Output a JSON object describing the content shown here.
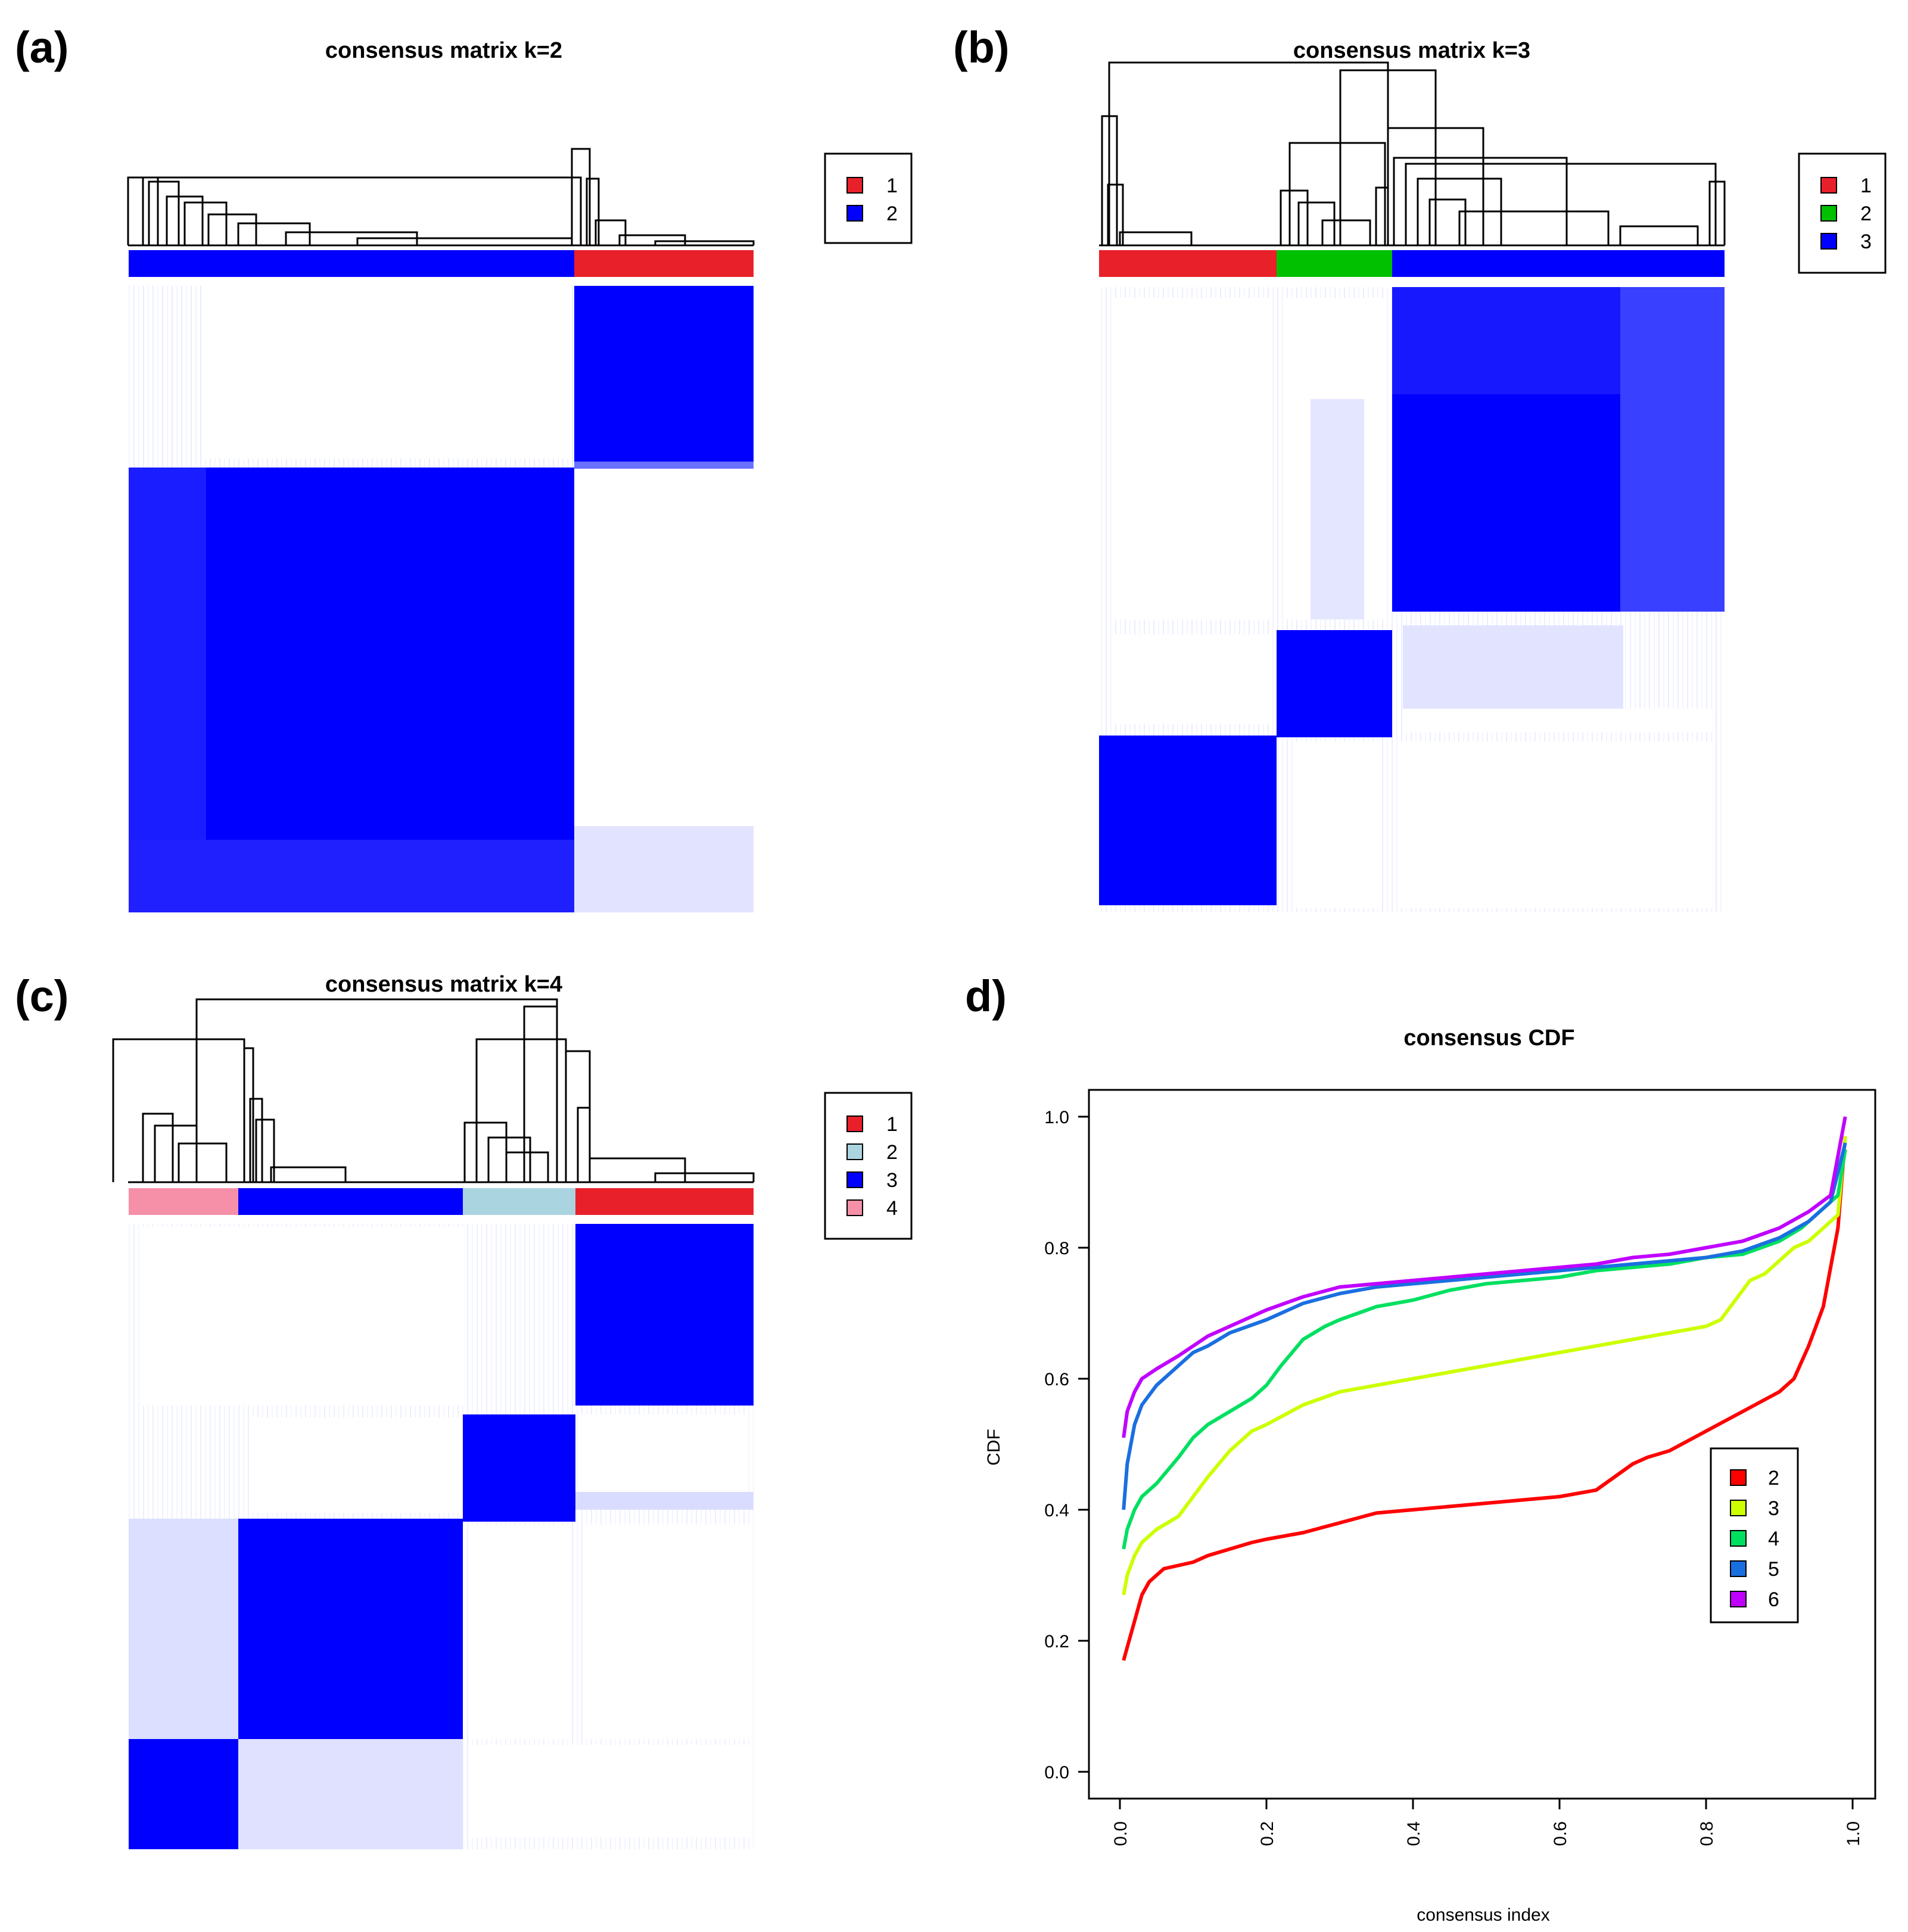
{
  "panels": {
    "a": {
      "label": "(a)"
    },
    "b": {
      "label": "(b)"
    },
    "c": {
      "label": "(c)"
    },
    "d": {
      "label": "d)"
    }
  },
  "chart_data": [
    {
      "type": "heatmap",
      "title": "consensus matrix k=2",
      "legend": {
        "entries": [
          "1",
          "2"
        ],
        "colors": [
          "#e8202a",
          "#0000ff"
        ]
      },
      "cluster_bar": [
        {
          "cluster": "2",
          "fraction": 0.71
        },
        {
          "cluster": "1",
          "fraction": 0.29
        }
      ],
      "matrix_color": "#0000ff"
    },
    {
      "type": "heatmap",
      "title": "consensus matrix k=3",
      "legend": {
        "entries": [
          "1",
          "2",
          "3"
        ],
        "colors": [
          "#e8202a",
          "#00c000",
          "#0000ff"
        ]
      },
      "cluster_bar": [
        {
          "cluster": "1",
          "fraction": 0.285
        },
        {
          "cluster": "2",
          "fraction": 0.185
        },
        {
          "cluster": "3",
          "fraction": 0.53
        }
      ],
      "matrix_color": "#0000ff"
    },
    {
      "type": "heatmap",
      "title": "consensus matrix k=4",
      "legend": {
        "entries": [
          "1",
          "2",
          "3",
          "4"
        ],
        "colors": [
          "#e8202a",
          "#aad4e0",
          "#0000ff",
          "#f590a8"
        ]
      },
      "cluster_bar": [
        {
          "cluster": "4",
          "fraction": 0.175
        },
        {
          "cluster": "3",
          "fraction": 0.36
        },
        {
          "cluster": "2",
          "fraction": 0.18
        },
        {
          "cluster": "1",
          "fraction": 0.285
        }
      ],
      "matrix_color": "#0000ff"
    },
    {
      "type": "line",
      "title": "consensus CDF",
      "xlabel": "consensus index",
      "ylabel": "CDF",
      "xlim": [
        0,
        1
      ],
      "ylim": [
        0,
        1
      ],
      "xticks": [
        "0.0",
        "0.2",
        "0.4",
        "0.6",
        "0.8",
        "1.0"
      ],
      "yticks": [
        "0.0",
        "0.2",
        "0.4",
        "0.6",
        "0.8",
        "1.0"
      ],
      "legend": {
        "position": "bottom-right"
      },
      "series": [
        {
          "name": "2",
          "color": "#ff0000",
          "x": [
            0.005,
            0.01,
            0.02,
            0.03,
            0.04,
            0.05,
            0.06,
            0.08,
            0.1,
            0.12,
            0.15,
            0.18,
            0.2,
            0.25,
            0.3,
            0.35,
            0.4,
            0.45,
            0.5,
            0.55,
            0.6,
            0.65,
            0.7,
            0.72,
            0.75,
            0.8,
            0.85,
            0.9,
            0.92,
            0.94,
            0.96,
            0.97,
            0.98,
            0.99
          ],
          "y": [
            0.17,
            0.19,
            0.23,
            0.27,
            0.29,
            0.3,
            0.31,
            0.315,
            0.32,
            0.33,
            0.34,
            0.35,
            0.355,
            0.365,
            0.38,
            0.395,
            0.4,
            0.405,
            0.41,
            0.415,
            0.42,
            0.43,
            0.47,
            0.48,
            0.49,
            0.52,
            0.55,
            0.58,
            0.6,
            0.65,
            0.71,
            0.77,
            0.83,
            0.97
          ]
        },
        {
          "name": "3",
          "color": "#ccff00",
          "x": [
            0.005,
            0.01,
            0.02,
            0.03,
            0.05,
            0.08,
            0.1,
            0.12,
            0.15,
            0.18,
            0.2,
            0.25,
            0.3,
            0.35,
            0.4,
            0.45,
            0.5,
            0.55,
            0.6,
            0.65,
            0.7,
            0.75,
            0.8,
            0.82,
            0.84,
            0.86,
            0.88,
            0.9,
            0.92,
            0.94,
            0.96,
            0.98,
            0.99
          ],
          "y": [
            0.27,
            0.3,
            0.33,
            0.35,
            0.37,
            0.39,
            0.42,
            0.45,
            0.49,
            0.52,
            0.53,
            0.56,
            0.58,
            0.59,
            0.6,
            0.61,
            0.62,
            0.63,
            0.64,
            0.65,
            0.66,
            0.67,
            0.68,
            0.69,
            0.72,
            0.75,
            0.76,
            0.78,
            0.8,
            0.81,
            0.83,
            0.85,
            0.97
          ]
        },
        {
          "name": "4",
          "color": "#00e060",
          "x": [
            0.005,
            0.01,
            0.02,
            0.03,
            0.05,
            0.08,
            0.1,
            0.12,
            0.15,
            0.18,
            0.2,
            0.22,
            0.25,
            0.28,
            0.3,
            0.35,
            0.4,
            0.45,
            0.5,
            0.55,
            0.6,
            0.65,
            0.7,
            0.75,
            0.8,
            0.85,
            0.9,
            0.93,
            0.96,
            0.98,
            0.99
          ],
          "y": [
            0.34,
            0.37,
            0.4,
            0.42,
            0.44,
            0.48,
            0.51,
            0.53,
            0.55,
            0.57,
            0.59,
            0.62,
            0.66,
            0.68,
            0.69,
            0.71,
            0.72,
            0.735,
            0.745,
            0.75,
            0.755,
            0.765,
            0.77,
            0.775,
            0.785,
            0.79,
            0.81,
            0.83,
            0.86,
            0.88,
            0.95
          ]
        },
        {
          "name": "5",
          "color": "#1a6fe0",
          "x": [
            0.005,
            0.01,
            0.02,
            0.03,
            0.05,
            0.08,
            0.1,
            0.12,
            0.15,
            0.2,
            0.25,
            0.3,
            0.35,
            0.4,
            0.45,
            0.5,
            0.55,
            0.6,
            0.65,
            0.7,
            0.75,
            0.8,
            0.85,
            0.9,
            0.94,
            0.97,
            0.99
          ],
          "y": [
            0.4,
            0.47,
            0.53,
            0.56,
            0.59,
            0.62,
            0.64,
            0.65,
            0.67,
            0.69,
            0.715,
            0.73,
            0.74,
            0.745,
            0.75,
            0.755,
            0.76,
            0.765,
            0.77,
            0.775,
            0.78,
            0.785,
            0.795,
            0.815,
            0.84,
            0.87,
            0.96
          ]
        },
        {
          "name": "6",
          "color": "#c000ff",
          "x": [
            0.005,
            0.01,
            0.02,
            0.03,
            0.05,
            0.08,
            0.1,
            0.12,
            0.15,
            0.2,
            0.25,
            0.3,
            0.35,
            0.4,
            0.45,
            0.5,
            0.55,
            0.6,
            0.65,
            0.7,
            0.75,
            0.8,
            0.85,
            0.9,
            0.94,
            0.97,
            0.99
          ],
          "y": [
            0.51,
            0.55,
            0.58,
            0.6,
            0.615,
            0.635,
            0.65,
            0.665,
            0.68,
            0.705,
            0.725,
            0.74,
            0.745,
            0.75,
            0.755,
            0.76,
            0.765,
            0.77,
            0.775,
            0.785,
            0.79,
            0.8,
            0.81,
            0.83,
            0.855,
            0.88,
            1.0
          ]
        }
      ]
    }
  ]
}
